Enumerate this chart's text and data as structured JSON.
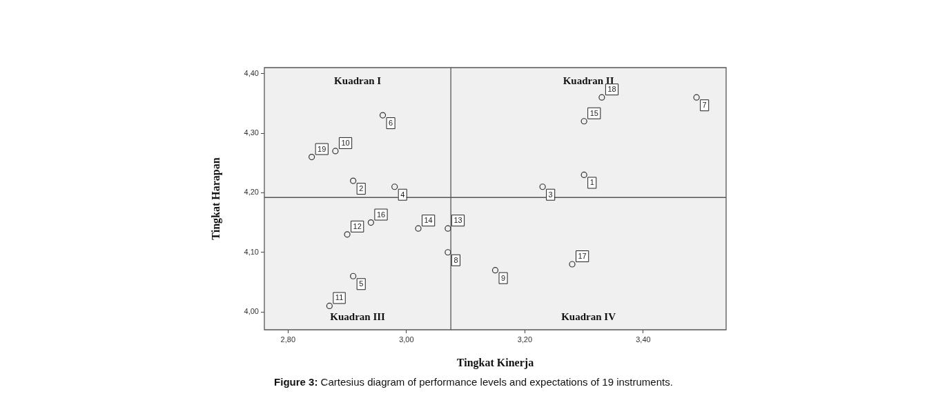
{
  "chart_data": {
    "type": "scatter",
    "xlabel": "Tingkat Kinerja",
    "ylabel": "Tingkat Harapan",
    "x": [
      3.3,
      2.91,
      3.23,
      2.98,
      2.91,
      2.96,
      3.49,
      3.07,
      3.15,
      2.88,
      2.87,
      2.9,
      3.07,
      3.02,
      3.3,
      2.94,
      3.28,
      3.33,
      2.84
    ],
    "values": [
      4.23,
      4.22,
      4.21,
      4.21,
      4.06,
      4.33,
      4.36,
      4.1,
      4.07,
      4.27,
      4.01,
      4.13,
      4.14,
      4.14,
      4.32,
      4.15,
      4.08,
      4.36,
      4.26
    ],
    "color": "#333333",
    "marker": "circle",
    "xlim": [
      2.76,
      3.54
    ],
    "ylim": [
      3.97,
      4.41
    ],
    "xticks": [
      {
        "value": 2.8,
        "label": "2,80"
      },
      {
        "value": 3.0,
        "label": "3,00"
      },
      {
        "value": 3.2,
        "label": "3,20"
      },
      {
        "value": 3.4,
        "label": "3,40"
      }
    ],
    "yticks": [
      {
        "value": 4.0,
        "label": "4,00"
      },
      {
        "value": 4.1,
        "label": "4,10"
      },
      {
        "value": 4.2,
        "label": "4,20"
      },
      {
        "value": 4.3,
        "label": "4,30"
      },
      {
        "value": 4.4,
        "label": "4,40"
      }
    ],
    "ref_lines": [
      {
        "axis": "x",
        "value": 3.075,
        "color": "#555555"
      },
      {
        "axis": "y",
        "value": 4.192,
        "color": "#555555"
      }
    ],
    "grid": false,
    "legend": false,
    "annotations": [
      "Kuadran I",
      "Kuadran II",
      "Kuadran III",
      "Kuadran IV",
      "Figure 3: Cartesius diagram of performance levels and expectations of 19 instruments.",
      {
        "text": "1",
        "x": 3.3,
        "y": 4.23
      },
      {
        "text": "2",
        "x": 2.91,
        "y": 4.22
      },
      {
        "text": "3",
        "x": 3.23,
        "y": 4.21
      },
      {
        "text": "4",
        "x": 2.98,
        "y": 4.21
      },
      {
        "text": "5",
        "x": 2.91,
        "y": 4.06
      },
      {
        "text": "6",
        "x": 2.96,
        "y": 4.33
      },
      {
        "text": "7",
        "x": 3.49,
        "y": 4.36
      },
      {
        "text": "8",
        "x": 3.07,
        "y": 4.1
      },
      {
        "text": "9",
        "x": 3.15,
        "y": 4.07
      },
      {
        "text": "10",
        "x": 2.88,
        "y": 4.27
      },
      {
        "text": "11",
        "x": 2.87,
        "y": 4.01
      },
      {
        "text": "12",
        "x": 2.9,
        "y": 4.13
      },
      {
        "text": "13",
        "x": 3.07,
        "y": 4.14
      },
      {
        "text": "14",
        "x": 3.02,
        "y": 4.14
      },
      {
        "text": "15",
        "x": 3.3,
        "y": 4.32
      },
      {
        "text": "16",
        "x": 2.94,
        "y": 4.15
      },
      {
        "text": "17",
        "x": 3.28,
        "y": 4.08
      },
      {
        "text": "18",
        "x": 3.33,
        "y": 4.36
      },
      {
        "text": "19",
        "x": 2.84,
        "y": 4.26
      }
    ]
  }
}
